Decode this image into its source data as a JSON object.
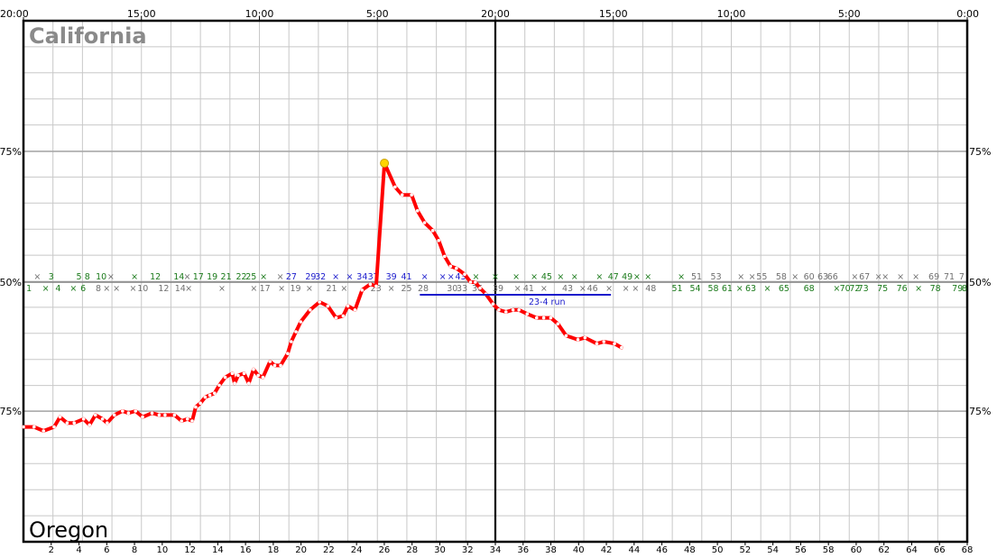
{
  "chart_data": {
    "type": "line",
    "teams": {
      "top": "California",
      "bottom": "Oregon"
    },
    "time_ticks": [
      {
        "t": 0,
        "label": "20:00"
      },
      {
        "t": 5,
        "label": "15:00"
      },
      {
        "t": 10,
        "label": "10:00"
      },
      {
        "t": 15,
        "label": "5:00"
      },
      {
        "t": 20,
        "label": "20:00"
      },
      {
        "t": 25,
        "label": "15:00"
      },
      {
        "t": 30,
        "label": "10:00"
      },
      {
        "t": 35,
        "label": "5:00"
      },
      {
        "t": 40,
        "label": "0:00"
      }
    ],
    "y_ticks": [
      {
        "v": 75,
        "label": "75%"
      },
      {
        "v": 50,
        "label": "50%"
      },
      {
        "v": -75,
        "label": "75%"
      }
    ],
    "y_range": [
      -100,
      100
    ],
    "x_range": [
      0,
      40
    ],
    "halftime": 20,
    "events_x_range": [
      0,
      68
    ],
    "event_ticks": [
      "2",
      "4",
      "6",
      "8",
      "10",
      "12",
      "14",
      "16",
      "18",
      "20",
      "22",
      "24",
      "26",
      "28",
      "30",
      "32",
      "34",
      "36",
      "38",
      "40",
      "42",
      "44",
      "46",
      "48",
      "50",
      "52",
      "54",
      "56",
      "58",
      "60",
      "62",
      "64",
      "66",
      "68"
    ],
    "top_marks": [
      {
        "e": 1,
        "label": "×",
        "c": "gray"
      },
      {
        "e": 2,
        "label": "3",
        "c": "green"
      },
      {
        "e": 4,
        "label": "5",
        "c": "green"
      },
      {
        "e": 4.6,
        "label": "8",
        "c": "green"
      },
      {
        "e": 5.6,
        "label": "10",
        "c": "green"
      },
      {
        "e": 6.3,
        "label": "×",
        "c": "gray"
      },
      {
        "e": 8,
        "label": "×",
        "c": "green"
      },
      {
        "e": 9.5,
        "label": "12",
        "c": "green"
      },
      {
        "e": 11.2,
        "label": "14",
        "c": "green"
      },
      {
        "e": 11.8,
        "label": "×",
        "c": "gray"
      },
      {
        "e": 12.6,
        "label": "17",
        "c": "green"
      },
      {
        "e": 13.6,
        "label": "19",
        "c": "green"
      },
      {
        "e": 14.6,
        "label": "21",
        "c": "green"
      },
      {
        "e": 15.7,
        "label": "22",
        "c": "green"
      },
      {
        "e": 16.4,
        "label": "25",
        "c": "green"
      },
      {
        "e": 17.3,
        "label": "×",
        "c": "green"
      },
      {
        "e": 18.5,
        "label": "×",
        "c": "gray"
      },
      {
        "e": 19.3,
        "label": "27",
        "c": "blue"
      },
      {
        "e": 20.7,
        "label": "29",
        "c": "blue"
      },
      {
        "e": 21.4,
        "label": "32",
        "c": "blue"
      },
      {
        "e": 22.5,
        "label": "×",
        "c": "blue"
      },
      {
        "e": 23.5,
        "label": "×",
        "c": "blue"
      },
      {
        "e": 24.4,
        "label": "34",
        "c": "blue"
      },
      {
        "e": 25.2,
        "label": "37",
        "c": "blue"
      },
      {
        "e": 26.5,
        "label": "39",
        "c": "blue"
      },
      {
        "e": 27.6,
        "label": "41",
        "c": "blue"
      },
      {
        "e": 28.9,
        "label": "×",
        "c": "blue"
      },
      {
        "e": 30.2,
        "label": "×",
        "c": "blue"
      },
      {
        "e": 30.8,
        "label": "×",
        "c": "blue"
      },
      {
        "e": 31.5,
        "label": "43",
        "c": "blue"
      },
      {
        "e": 32.6,
        "label": "×",
        "c": "green"
      },
      {
        "e": 34,
        "label": "×",
        "c": "green"
      },
      {
        "e": 35.5,
        "label": "×",
        "c": "green"
      },
      {
        "e": 36.8,
        "label": "×",
        "c": "green"
      },
      {
        "e": 37.7,
        "label": "45",
        "c": "green"
      },
      {
        "e": 38.7,
        "label": "×",
        "c": "green"
      },
      {
        "e": 39.7,
        "label": "×",
        "c": "green"
      },
      {
        "e": 41.5,
        "label": "×",
        "c": "green"
      },
      {
        "e": 42.5,
        "label": "47",
        "c": "green"
      },
      {
        "e": 43.5,
        "label": "49",
        "c": "green"
      },
      {
        "e": 44.2,
        "label": "×",
        "c": "green"
      },
      {
        "e": 45,
        "label": "×",
        "c": "green"
      },
      {
        "e": 47.4,
        "label": "×",
        "c": "green"
      },
      {
        "e": 48.5,
        "label": "51",
        "c": "gray"
      },
      {
        "e": 49.9,
        "label": "53",
        "c": "gray"
      },
      {
        "e": 51.7,
        "label": "×",
        "c": "gray"
      },
      {
        "e": 52.5,
        "label": "×",
        "c": "gray"
      },
      {
        "e": 53.2,
        "label": "55",
        "c": "gray"
      },
      {
        "e": 54.6,
        "label": "58",
        "c": "gray"
      },
      {
        "e": 55.6,
        "label": "×",
        "c": "gray"
      },
      {
        "e": 56.6,
        "label": "60",
        "c": "gray"
      },
      {
        "e": 57.6,
        "label": "63",
        "c": "gray"
      },
      {
        "e": 58.3,
        "label": "66",
        "c": "gray"
      },
      {
        "e": 59.9,
        "label": "×",
        "c": "gray"
      },
      {
        "e": 60.6,
        "label": "67",
        "c": "gray"
      },
      {
        "e": 61.6,
        "label": "×",
        "c": "gray"
      },
      {
        "e": 62.1,
        "label": "×",
        "c": "gray"
      },
      {
        "e": 63.2,
        "label": "×",
        "c": "gray"
      },
      {
        "e": 64.3,
        "label": "×",
        "c": "gray"
      },
      {
        "e": 65.6,
        "label": "69",
        "c": "gray"
      },
      {
        "e": 66.7,
        "label": "71",
        "c": "gray"
      },
      {
        "e": 67.6,
        "label": "7",
        "c": "gray"
      }
    ],
    "bottom_marks": [
      {
        "e": 0.4,
        "label": "1",
        "c": "green"
      },
      {
        "e": 1.6,
        "label": "×",
        "c": "green"
      },
      {
        "e": 2.5,
        "label": "4",
        "c": "green"
      },
      {
        "e": 3.6,
        "label": "×",
        "c": "green"
      },
      {
        "e": 4.3,
        "label": "6",
        "c": "green"
      },
      {
        "e": 5.4,
        "label": "8",
        "c": "gray"
      },
      {
        "e": 6,
        "label": "×",
        "c": "gray"
      },
      {
        "e": 6.7,
        "label": "×",
        "c": "gray"
      },
      {
        "e": 7.9,
        "label": "×",
        "c": "gray"
      },
      {
        "e": 8.6,
        "label": "10",
        "c": "gray"
      },
      {
        "e": 10.1,
        "label": "12",
        "c": "gray"
      },
      {
        "e": 11.3,
        "label": "14",
        "c": "gray"
      },
      {
        "e": 11.9,
        "label": "×",
        "c": "gray"
      },
      {
        "e": 14.3,
        "label": "×",
        "c": "gray"
      },
      {
        "e": 16.6,
        "label": "×",
        "c": "gray"
      },
      {
        "e": 17.4,
        "label": "17",
        "c": "gray"
      },
      {
        "e": 18.6,
        "label": "×",
        "c": "gray"
      },
      {
        "e": 19.6,
        "label": "19",
        "c": "gray"
      },
      {
        "e": 20.6,
        "label": "×",
        "c": "gray"
      },
      {
        "e": 22.2,
        "label": "21",
        "c": "gray"
      },
      {
        "e": 23.1,
        "label": "×",
        "c": "gray"
      },
      {
        "e": 25.4,
        "label": "23",
        "c": "gray"
      },
      {
        "e": 26.5,
        "label": "×",
        "c": "gray"
      },
      {
        "e": 27.6,
        "label": "25",
        "c": "gray"
      },
      {
        "e": 28.8,
        "label": "28",
        "c": "gray"
      },
      {
        "e": 30.9,
        "label": "30",
        "c": "gray"
      },
      {
        "e": 31.6,
        "label": "33",
        "c": "gray"
      },
      {
        "e": 32.7,
        "label": "36",
        "c": "gray"
      },
      {
        "e": 34.2,
        "label": "39",
        "c": "gray"
      },
      {
        "e": 35.6,
        "label": "×",
        "c": "gray"
      },
      {
        "e": 36.4,
        "label": "41",
        "c": "gray"
      },
      {
        "e": 37.5,
        "label": "×",
        "c": "gray"
      },
      {
        "e": 39.2,
        "label": "43",
        "c": "gray"
      },
      {
        "e": 40.3,
        "label": "×",
        "c": "gray"
      },
      {
        "e": 41,
        "label": "46",
        "c": "gray"
      },
      {
        "e": 42.2,
        "label": "×",
        "c": "gray"
      },
      {
        "e": 43.4,
        "label": "×",
        "c": "gray"
      },
      {
        "e": 44.1,
        "label": "×",
        "c": "gray"
      },
      {
        "e": 45.2,
        "label": "48",
        "c": "gray"
      },
      {
        "e": 47.1,
        "label": "51",
        "c": "green"
      },
      {
        "e": 48.4,
        "label": "54",
        "c": "green"
      },
      {
        "e": 49.7,
        "label": "58",
        "c": "green"
      },
      {
        "e": 50.7,
        "label": "61",
        "c": "green"
      },
      {
        "e": 51.6,
        "label": "×",
        "c": "green"
      },
      {
        "e": 52.4,
        "label": "63",
        "c": "green"
      },
      {
        "e": 53.6,
        "label": "×",
        "c": "green"
      },
      {
        "e": 54.8,
        "label": "65",
        "c": "green"
      },
      {
        "e": 56.6,
        "label": "68",
        "c": "green"
      },
      {
        "e": 58.6,
        "label": "×",
        "c": "green"
      },
      {
        "e": 59.2,
        "label": "70",
        "c": "green"
      },
      {
        "e": 59.9,
        "label": "72",
        "c": "green"
      },
      {
        "e": 60.5,
        "label": "73",
        "c": "green"
      },
      {
        "e": 61.9,
        "label": "75",
        "c": "green"
      },
      {
        "e": 63.3,
        "label": "76",
        "c": "green"
      },
      {
        "e": 64.5,
        "label": "×",
        "c": "green"
      },
      {
        "e": 65.7,
        "label": "78",
        "c": "green"
      },
      {
        "e": 67.3,
        "label": "79",
        "c": "green"
      },
      {
        "e": 67.8,
        "label": "8",
        "c": "green"
      }
    ],
    "run": {
      "label": "23-4 run",
      "t_start": 16.8,
      "t_end": 24.9,
      "y": 42.5
    },
    "series": [
      {
        "color": "#ff0000",
        "points": [
          [
            0.0,
            -73
          ],
          [
            0.45,
            -73
          ],
          [
            0.85,
            -75
          ],
          [
            1.3,
            -73
          ],
          [
            1.55,
            -68
          ],
          [
            1.85,
            -71
          ],
          [
            2.15,
            -71
          ],
          [
            2.55,
            -69
          ],
          [
            2.8,
            -72
          ],
          [
            3.05,
            -67
          ],
          [
            3.35,
            -69
          ],
          [
            3.55,
            -71
          ],
          [
            3.85,
            -67
          ],
          [
            4.2,
            -65
          ],
          [
            4.45,
            -66
          ],
          [
            4.75,
            -65
          ],
          [
            5.05,
            -68
          ],
          [
            5.45,
            -66
          ],
          [
            5.75,
            -67
          ],
          [
            6.0,
            -67
          ],
          [
            6.4,
            -67
          ],
          [
            6.7,
            -70
          ],
          [
            6.95,
            -69
          ],
          [
            7.15,
            -70
          ],
          [
            7.3,
            -63
          ],
          [
            7.5,
            -61
          ],
          [
            7.7,
            -58
          ],
          [
            7.9,
            -57
          ],
          [
            8.1,
            -56
          ],
          [
            8.3,
            -52
          ],
          [
            8.55,
            -48
          ],
          [
            8.85,
            -46
          ],
          [
            8.95,
            -51
          ],
          [
            9.1,
            -47
          ],
          [
            9.35,
            -46
          ],
          [
            9.55,
            -51
          ],
          [
            9.75,
            -44
          ],
          [
            9.95,
            -47
          ],
          [
            10.15,
            -48
          ],
          [
            10.45,
            -40
          ],
          [
            10.65,
            -42
          ],
          [
            10.9,
            -42
          ],
          [
            11.2,
            -36
          ],
          [
            11.35,
            -30
          ],
          [
            11.55,
            -25
          ],
          [
            11.75,
            -20
          ],
          [
            12.15,
            -14
          ],
          [
            12.55,
            -10
          ],
          [
            12.9,
            -12
          ],
          [
            13.25,
            -18
          ],
          [
            13.55,
            -17
          ],
          [
            13.75,
            -12
          ],
          [
            14.05,
            -14
          ],
          [
            14.35,
            -4
          ],
          [
            14.7,
            -1
          ],
          [
            14.95,
            -2
          ],
          [
            15.35,
            -10
          ],
          [
            15.65,
            -11
          ],
          [
            15.95,
            -11
          ],
          [
            16.2,
            -1
          ],
          [
            16.45,
            -1
          ],
          [
            16.75,
            4
          ],
          [
            17.0,
            0
          ],
          [
            17.2,
            -1
          ],
          [
            17.55,
            -7
          ],
          [
            17.8,
            -4
          ],
          [
            18.2,
            -3
          ],
          [
            18.4,
            -8
          ],
          [
            18.65,
            -1
          ],
          [
            18.9,
            6
          ],
          [
            19.15,
            2
          ],
          [
            19.45,
            -1
          ],
          [
            19.8,
            -12
          ],
          [
            20.0,
            -18
          ],
          [
            20.35,
            -19
          ],
          [
            20.55,
            -19
          ],
          [
            20.8,
            -16
          ],
          [
            21.0,
            -18
          ],
          [
            21.35,
            -17
          ],
          [
            21.75,
            -17
          ],
          [
            22.05,
            -18
          ],
          [
            22.35,
            -18
          ],
          [
            22.65,
            -21
          ],
          [
            23.0,
            -27
          ],
          [
            23.5,
            -29
          ],
          [
            23.8,
            -28
          ],
          [
            24.3,
            -31
          ],
          [
            24.6,
            -30
          ],
          [
            25.05,
            -31
          ],
          [
            25.35,
            -33
          ]
        ]
      }
    ],
    "upper_path": [
      [
        15.3,
        60
      ],
      [
        15.75,
        48
      ],
      [
        16.05,
        44
      ],
      [
        16.45,
        44
      ],
      [
        16.7,
        36
      ],
      [
        17.0,
        30
      ],
      [
        17.35,
        26
      ],
      [
        17.6,
        21
      ],
      [
        17.85,
        13
      ],
      [
        18.1,
        8
      ],
      [
        18.35,
        7
      ],
      [
        18.7,
        4
      ],
      [
        18.95,
        0
      ],
      [
        19.15,
        0
      ],
      [
        19.35,
        -3
      ],
      [
        19.6,
        -6
      ],
      [
        19.9,
        -11
      ],
      [
        20.15,
        -14
      ],
      [
        20.45,
        -15
      ],
      [
        20.75,
        -14
      ],
      [
        21.0,
        -14
      ],
      [
        21.35,
        -16
      ],
      [
        21.75,
        -18
      ],
      [
        22.05,
        -18
      ],
      [
        22.35,
        -18
      ],
      [
        22.65,
        -21
      ],
      [
        23.0,
        -27
      ],
      [
        23.5,
        -29
      ],
      [
        23.8,
        -28
      ],
      [
        24.3,
        -31
      ],
      [
        24.6,
        -30
      ],
      [
        25.05,
        -31
      ],
      [
        25.35,
        -33
      ]
    ]
  }
}
